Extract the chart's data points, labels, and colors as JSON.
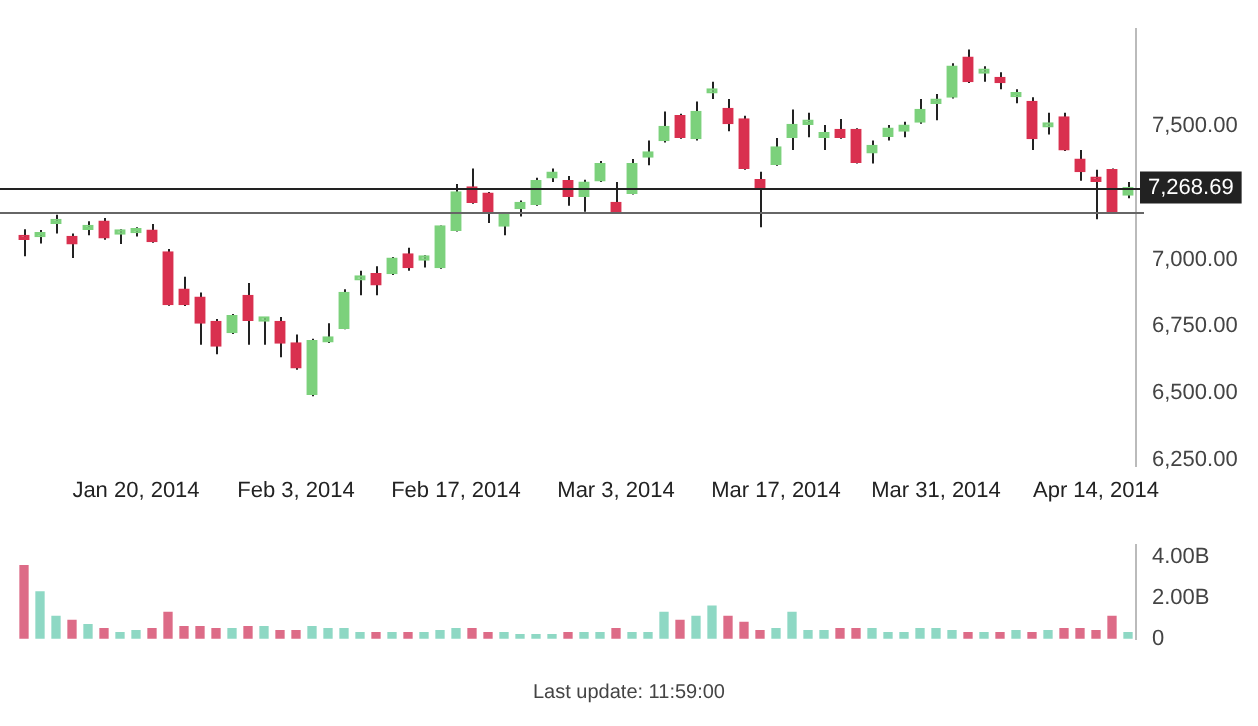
{
  "chart_data": [
    {
      "type": "candlestick",
      "categories": [
        null,
        null,
        null,
        null,
        null,
        null,
        null,
        "Jan 20, 2014",
        null,
        null,
        null,
        null,
        null,
        null,
        null,
        null,
        null,
        "Feb 3, 2014",
        null,
        null,
        null,
        null,
        null,
        null,
        null,
        null,
        null,
        "Feb 17, 2014",
        null,
        null,
        null,
        null,
        null,
        null,
        null,
        null,
        null,
        "Mar 3, 2014",
        null,
        null,
        null,
        null,
        null,
        null,
        null,
        null,
        null,
        "Mar 17, 2014",
        null,
        null,
        null,
        null,
        null,
        null,
        null,
        null,
        null,
        "Mar 31, 2014",
        null,
        null,
        null,
        null,
        null,
        null,
        null,
        null,
        null,
        "Apr 14, 2014",
        null,
        null
      ],
      "ohlc": [
        [
          7085,
          7113,
          7012,
          7075
        ],
        [
          7085,
          7110,
          7060,
          7088
        ],
        [
          7135,
          7167,
          7097,
          7138
        ],
        [
          7086,
          7097,
          7005,
          7058
        ],
        [
          7112,
          7143,
          7090,
          7115
        ],
        [
          7143,
          7155,
          7074,
          7081
        ],
        [
          7095,
          7113,
          7058,
          7099
        ],
        [
          7100,
          7120,
          7086,
          7104
        ],
        [
          7109,
          7132,
          7062,
          7067
        ],
        [
          7028,
          7039,
          6827,
          6831
        ],
        [
          6889,
          6935,
          6826,
          6831
        ],
        [
          6859,
          6877,
          6681,
          6762
        ],
        [
          6769,
          6778,
          6646,
          6676
        ],
        [
          6727,
          6796,
          6722,
          6790
        ],
        [
          6866,
          6912,
          6681,
          6773
        ],
        [
          6770,
          6785,
          6681,
          6772
        ],
        [
          6769,
          6785,
          6635,
          6688
        ],
        [
          6688,
          6720,
          6588,
          6595
        ],
        [
          6496,
          6704,
          6489,
          6697
        ],
        [
          6692,
          6762,
          6688,
          6711
        ],
        [
          6743,
          6889,
          6739,
          6877
        ],
        [
          6924,
          6958,
          6866,
          6928
        ],
        [
          6947,
          6975,
          6866,
          6905
        ],
        [
          6947,
          7009,
          6942,
          7005
        ],
        [
          7021,
          7044,
          6958,
          6970
        ],
        [
          6998,
          7016,
          6970,
          7007
        ],
        [
          6970,
          7127,
          6965,
          7125
        ],
        [
          7109,
          7282,
          7104,
          7252
        ],
        [
          7271,
          7340,
          7208,
          7213
        ],
        [
          7248,
          7252,
          7136,
          7178
        ],
        [
          7125,
          7171,
          7090,
          7167
        ],
        [
          7190,
          7220,
          7160,
          7213
        ],
        [
          7206,
          7305,
          7201,
          7294
        ],
        [
          7305,
          7340,
          7289,
          7326
        ],
        [
          7294,
          7312,
          7201,
          7236
        ],
        [
          7236,
          7298,
          7178,
          7289
        ],
        [
          7294,
          7368,
          7289,
          7358
        ],
        [
          7213,
          7289,
          7173,
          7178
        ],
        [
          7247,
          7375,
          7243,
          7358
        ],
        [
          7382,
          7444,
          7352,
          7402
        ],
        [
          7444,
          7553,
          7437,
          7497
        ],
        [
          7537,
          7544,
          7451,
          7456
        ],
        [
          7451,
          7590,
          7444,
          7553
        ],
        [
          7622,
          7664,
          7599,
          7627
        ],
        [
          7564,
          7599,
          7479,
          7507
        ],
        [
          7525,
          7537,
          7335,
          7340
        ],
        [
          7298,
          7328,
          7120,
          7266
        ],
        [
          7355,
          7454,
          7350,
          7420
        ],
        [
          7456,
          7560,
          7409,
          7504
        ],
        [
          7505,
          7548,
          7456,
          7509
        ],
        [
          7456,
          7502,
          7409,
          7474
        ],
        [
          7486,
          7525,
          7451,
          7456
        ],
        [
          7486,
          7490,
          7358,
          7363
        ],
        [
          7398,
          7444,
          7358,
          7426
        ],
        [
          7460,
          7502,
          7444,
          7490
        ],
        [
          7479,
          7514,
          7456,
          7502
        ],
        [
          7513,
          7599,
          7507,
          7560
        ],
        [
          7583,
          7618,
          7520,
          7599
        ],
        [
          7606,
          7733,
          7601,
          7722
        ],
        [
          7756,
          7784,
          7659,
          7664
        ],
        [
          7696,
          7722,
          7664,
          7699
        ],
        [
          7680,
          7699,
          7636,
          7661
        ],
        [
          7608,
          7636,
          7583,
          7611
        ],
        [
          7590,
          7606,
          7409,
          7451
        ],
        [
          7495,
          7548,
          7467,
          7497
        ],
        [
          7532,
          7548,
          7405,
          7409
        ],
        [
          7375,
          7409,
          7294,
          7328
        ],
        [
          7294,
          7335,
          7150,
          7292
        ],
        [
          7335,
          7340,
          7173,
          7178
        ],
        [
          7240,
          7289,
          7229,
          7269
        ]
      ],
      "colors": [
        "#d9304f",
        "#7cd17c",
        "#7cd17c",
        "#d9304f",
        "#7cd17c",
        "#d9304f",
        "#7cd17c",
        "#7cd17c",
        "#d9304f",
        "#d9304f",
        "#d9304f",
        "#d9304f",
        "#d9304f",
        "#7cd17c",
        "#d9304f",
        "#7cd17c",
        "#d9304f",
        "#d9304f",
        "#7cd17c",
        "#7cd17c",
        "#7cd17c",
        "#7cd17c",
        "#d9304f",
        "#7cd17c",
        "#d9304f",
        "#7cd17c",
        "#7cd17c",
        "#7cd17c",
        "#d9304f",
        "#d9304f",
        "#7cd17c",
        "#7cd17c",
        "#7cd17c",
        "#7cd17c",
        "#d9304f",
        "#7cd17c",
        "#7cd17c",
        "#d9304f",
        "#7cd17c",
        "#7cd17c",
        "#7cd17c",
        "#d9304f",
        "#7cd17c",
        "#7cd17c",
        "#d9304f",
        "#d9304f",
        "#d9304f",
        "#7cd17c",
        "#7cd17c",
        "#7cd17c",
        "#7cd17c",
        "#d9304f",
        "#d9304f",
        "#7cd17c",
        "#7cd17c",
        "#7cd17c",
        "#7cd17c",
        "#7cd17c",
        "#7cd17c",
        "#d9304f",
        "#7cd17c",
        "#d9304f",
        "#7cd17c",
        "#d9304f",
        "#7cd17c",
        "#d9304f",
        "#d9304f",
        "#d9304f",
        "#d9304f",
        "#7cd17c"
      ],
      "ylim": [
        6230,
        7860
      ],
      "yticks": [
        {
          "value": 6250,
          "label": "6,250.00"
        },
        {
          "value": 6500,
          "label": "6,500.00"
        },
        {
          "value": 6750,
          "label": "6,750.00"
        },
        {
          "value": 7000,
          "label": "7,000.00"
        },
        {
          "value": 7500,
          "label": "7,500.00"
        }
      ],
      "ref_lines": [
        {
          "axis": "y",
          "value": 7268.69,
          "label": "7,268.69",
          "color": "#222222"
        },
        {
          "axis": "y",
          "value": 7180,
          "label": null,
          "color": "#666666"
        }
      ]
    },
    {
      "type": "bar",
      "categories": [
        null,
        null,
        null,
        null,
        null,
        null,
        null,
        null,
        null,
        null,
        null,
        null,
        null,
        null,
        null,
        null,
        null,
        null,
        null,
        null,
        null,
        null,
        null,
        null,
        null,
        null,
        null,
        null,
        null,
        null,
        null,
        null,
        null,
        null,
        null,
        null,
        null,
        null,
        null,
        null,
        null,
        null,
        null,
        null,
        null,
        null,
        null,
        null,
        null,
        null,
        null,
        null,
        null,
        null,
        null,
        null,
        null,
        null,
        null,
        null,
        null,
        null,
        null,
        null,
        null,
        null,
        null,
        null,
        null,
        null
      ],
      "values": [
        3.6,
        2.3,
        1.1,
        0.9,
        0.7,
        0.5,
        0.3,
        0.4,
        0.5,
        1.3,
        0.6,
        0.6,
        0.5,
        0.5,
        0.6,
        0.6,
        0.4,
        0.4,
        0.6,
        0.5,
        0.5,
        0.3,
        0.3,
        0.3,
        0.3,
        0.3,
        0.4,
        0.5,
        0.5,
        0.3,
        0.3,
        0.2,
        0.2,
        0.2,
        0.3,
        0.3,
        0.3,
        0.5,
        0.3,
        0.3,
        1.3,
        0.9,
        1.1,
        1.6,
        1.1,
        0.8,
        0.4,
        0.5,
        1.3,
        0.4,
        0.4,
        0.5,
        0.5,
        0.5,
        0.3,
        0.3,
        0.5,
        0.5,
        0.4,
        0.3,
        0.3,
        0.3,
        0.4,
        0.3,
        0.4,
        0.5,
        0.5,
        0.4,
        1.1,
        0.3
      ],
      "colors": [
        "#dd6b87",
        "#8ed8c4",
        "#8ed8c4",
        "#dd6b87",
        "#8ed8c4",
        "#dd6b87",
        "#8ed8c4",
        "#8ed8c4",
        "#dd6b87",
        "#dd6b87",
        "#dd6b87",
        "#dd6b87",
        "#dd6b87",
        "#8ed8c4",
        "#dd6b87",
        "#8ed8c4",
        "#dd6b87",
        "#dd6b87",
        "#8ed8c4",
        "#8ed8c4",
        "#8ed8c4",
        "#8ed8c4",
        "#dd6b87",
        "#8ed8c4",
        "#dd6b87",
        "#8ed8c4",
        "#8ed8c4",
        "#8ed8c4",
        "#dd6b87",
        "#dd6b87",
        "#8ed8c4",
        "#8ed8c4",
        "#8ed8c4",
        "#8ed8c4",
        "#dd6b87",
        "#8ed8c4",
        "#8ed8c4",
        "#dd6b87",
        "#8ed8c4",
        "#8ed8c4",
        "#8ed8c4",
        "#dd6b87",
        "#8ed8c4",
        "#8ed8c4",
        "#dd6b87",
        "#dd6b87",
        "#dd6b87",
        "#8ed8c4",
        "#8ed8c4",
        "#8ed8c4",
        "#8ed8c4",
        "#dd6b87",
        "#dd6b87",
        "#8ed8c4",
        "#8ed8c4",
        "#8ed8c4",
        "#8ed8c4",
        "#8ed8c4",
        "#8ed8c4",
        "#dd6b87",
        "#8ed8c4",
        "#dd6b87",
        "#8ed8c4",
        "#dd6b87",
        "#8ed8c4",
        "#dd6b87",
        "#dd6b87",
        "#dd6b87",
        "#dd6b87",
        "#8ed8c4"
      ],
      "ylim": [
        0,
        4.6
      ],
      "yticks": [
        0,
        {
          "value": 2,
          "label": "2.00B"
        },
        {
          "value": 4,
          "label": "4.00B"
        }
      ],
      "tick_labels": "y",
      "annotations": [
        "Last update: 11:59:00"
      ]
    }
  ]
}
